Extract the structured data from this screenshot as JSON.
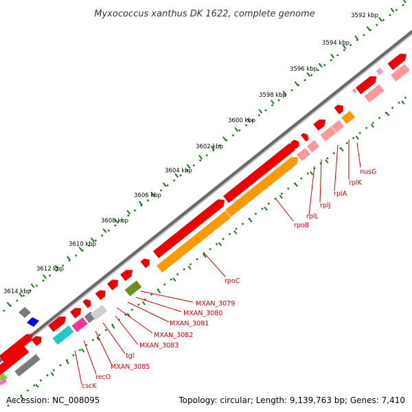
{
  "title": "Myxococcus xanthus DK 1622, complete genome",
  "kbp_labels": [
    "3592 kbp",
    "3594 kbp",
    "3596 kbp",
    "3598 kbp",
    "3600 kbp",
    "3602 kbp",
    "3604 kbp",
    "3606 kbp",
    "3608 kbp",
    "3610 kbp",
    "3612 kbp",
    "3614 kbp"
  ],
  "gene_labels": [
    "nusG",
    "rplK",
    "rplA",
    "rplJ",
    "rplL",
    "rpoB",
    "rpoC",
    "MXAN_3079",
    "MXAN_3080",
    "MXAN_3081",
    "MXAN_3082",
    "MXAN_3083",
    "tgl",
    "MXAN_3085",
    "recO",
    "cscK"
  ],
  "accession": "Accession: NC_008095",
  "topology": "Topology: circular; Length: 9,139,763 bp; Genes: 7,410",
  "colors": {
    "gene_red": "#ee0000",
    "gene_red_light": "#ff6a6a",
    "pink_rna": "#f08080",
    "rpoC_orange": "#ff9900",
    "mxan_3079_olive": "#6b8e23",
    "cyan": "#20c8c8",
    "magenta": "#ff3399",
    "grey": "#7a7a7a",
    "light_grey": "#cfcfcf",
    "blue": "#0000ff",
    "tick_green": "#1a7a1a",
    "label_red": "#cc0000"
  }
}
